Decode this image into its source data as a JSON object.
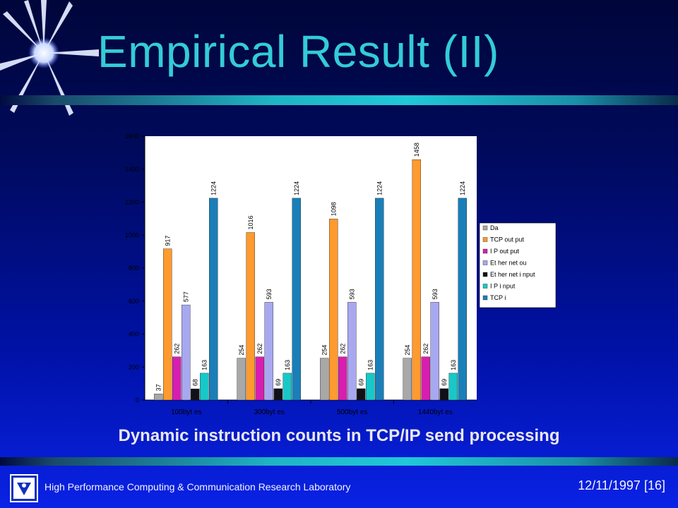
{
  "slide": {
    "title": "Empirical Result (II)",
    "caption": "Dynamic instruction counts in TCP/IP send processing",
    "footer_org": "High Performance Computing & Communication Research Laboratory",
    "footer_date": "12/11/1997",
    "footer_page": "[16]"
  },
  "chart_data": {
    "type": "bar",
    "categories": [
      "100byt es",
      "300byt es",
      "500byt es",
      "1440byt es"
    ],
    "ylim": [
      0,
      1600
    ],
    "yticks": [
      0,
      200,
      400,
      600,
      800,
      1000,
      1200,
      1400,
      1600
    ],
    "legend_position": "right",
    "series": [
      {
        "name": "Da",
        "color": "#a8a8a8",
        "values": [
          37,
          254,
          254,
          254
        ]
      },
      {
        "name": "TCP out put",
        "color": "#ff9a2e",
        "values": [
          917,
          1016,
          1098,
          1458
        ]
      },
      {
        "name": "I P out put",
        "color": "#d81eb0",
        "values": [
          262,
          262,
          262,
          262
        ]
      },
      {
        "name": "Et her net  ou",
        "color": "#a8a8f0",
        "values": [
          577,
          593,
          593,
          593
        ]
      },
      {
        "name": "Et her net  i nput",
        "color": "#101018",
        "values": [
          68,
          69,
          69,
          69
        ]
      },
      {
        "name": "I P i nput",
        "color": "#18c8c8",
        "values": [
          163,
          163,
          163,
          163
        ]
      },
      {
        "name": "TCP i",
        "color": "#1a7fb8",
        "values": [
          1224,
          1224,
          1224,
          1224
        ]
      }
    ]
  }
}
